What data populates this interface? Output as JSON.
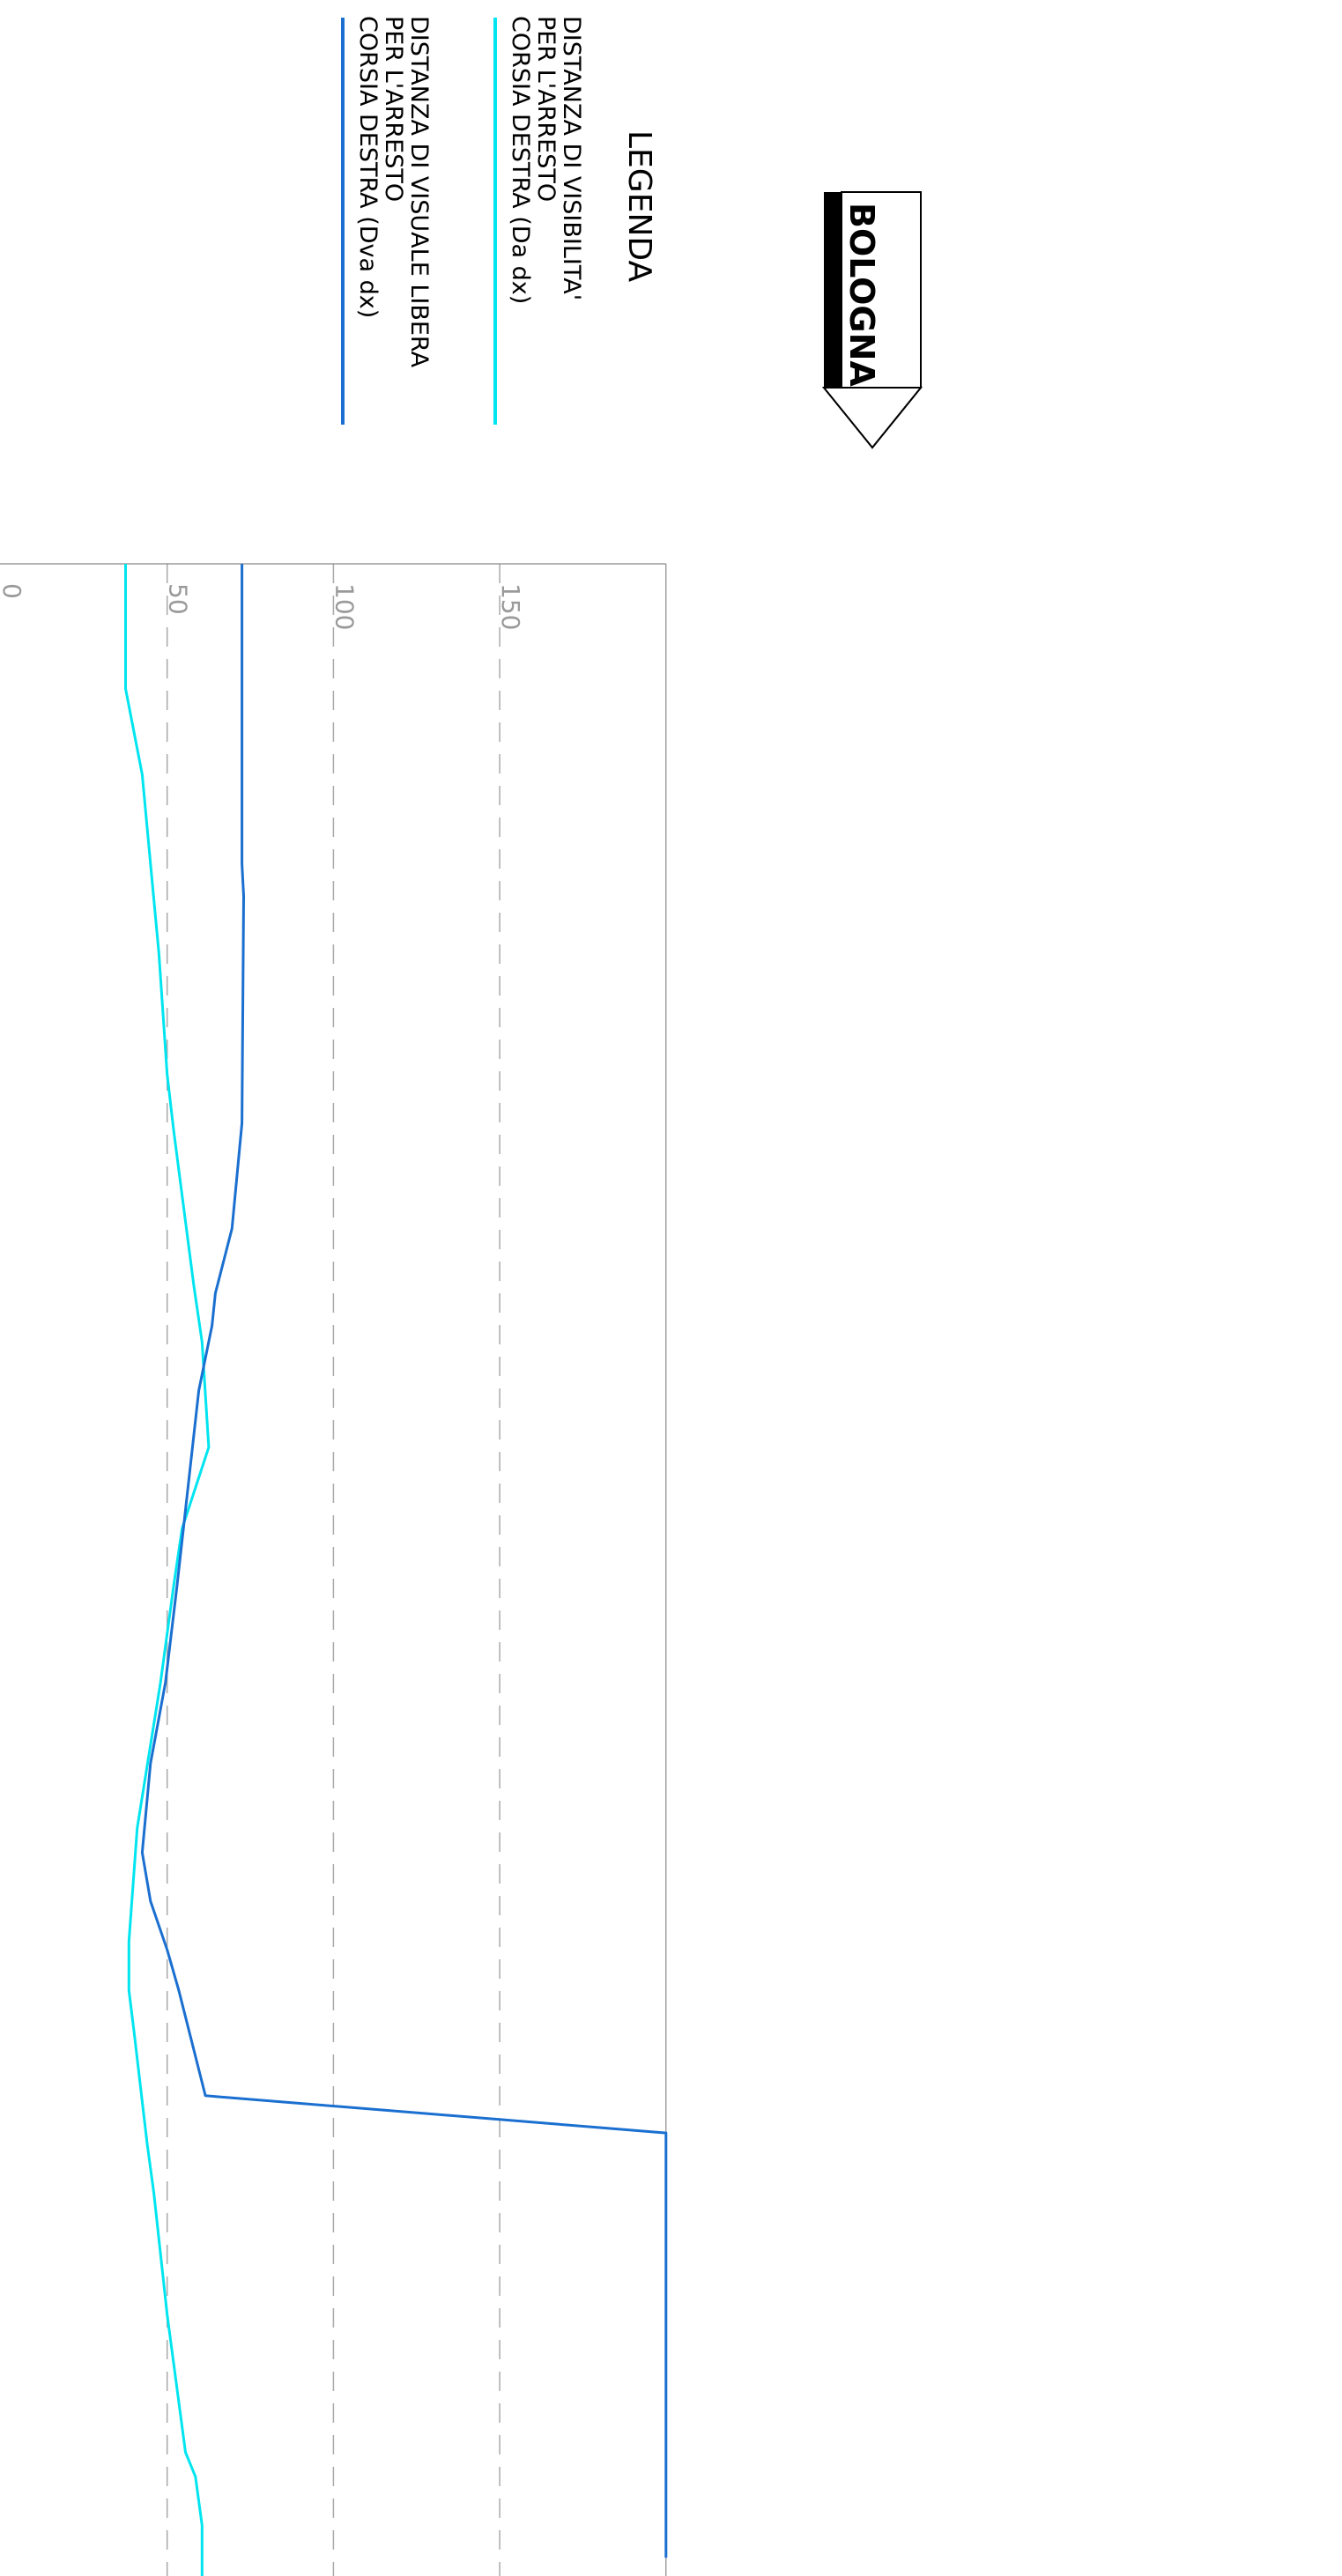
{
  "legend": {
    "title": "LEGENDA",
    "items": [
      {
        "lines": [
          "DISTANZA DI VISIBILITA'",
          "PER L'ARRESTO",
          "CORSIA DESTRA (Da dx)"
        ],
        "color": "#00e5f0"
      },
      {
        "lines": [
          "DISTANZA DI VISUALE LIBERA",
          "PER L'ARRESTO",
          "CORSIA DESTRA (Dva dx)"
        ],
        "color": "#1a6fd0"
      }
    ]
  },
  "direction": {
    "label": "BOLOGNA",
    "icon": "arrow-down-icon"
  },
  "chart_data": {
    "type": "line",
    "orientation": "rotated-90",
    "value_axis": {
      "ticks": [
        0,
        50,
        100,
        150
      ],
      "range": [
        0,
        200
      ],
      "gridlines": "dashed"
    },
    "series": [
      {
        "name": "Da dx",
        "color": "#00e5f0",
        "points": [
          [
            0,
            37.5
          ],
          [
            77,
            37.5
          ],
          [
            130,
            42.5
          ],
          [
            185,
            45
          ],
          [
            240,
            47.5
          ],
          [
            315,
            50
          ],
          [
            350,
            52
          ],
          [
            445,
            58
          ],
          [
            480,
            60.5
          ],
          [
            545,
            62.5
          ],
          [
            595,
            54.5
          ],
          [
            630,
            52
          ],
          [
            690,
            48
          ],
          [
            780,
            41
          ],
          [
            850,
            38.5
          ],
          [
            880,
            38.5
          ],
          [
            905,
            40
          ],
          [
            975,
            44
          ],
          [
            1005,
            46
          ],
          [
            1080,
            50
          ],
          [
            1165,
            55.5
          ],
          [
            1180,
            58.5
          ],
          [
            1210,
            60.5
          ],
          [
            1250,
            60.5
          ]
        ]
      },
      {
        "name": "Dva dx",
        "color": "#1a6fd0",
        "points": [
          [
            0,
            72.5
          ],
          [
            185,
            72.5
          ],
          [
            205,
            73
          ],
          [
            345,
            72.5
          ],
          [
            410,
            69.5
          ],
          [
            450,
            64.5
          ],
          [
            470,
            63.5
          ],
          [
            510,
            59.5
          ],
          [
            630,
            53
          ],
          [
            690,
            49.5
          ],
          [
            740,
            45
          ],
          [
            795,
            42.5
          ],
          [
            825,
            45
          ],
          [
            855,
            50
          ],
          [
            880,
            53.5
          ],
          [
            945,
            61.5
          ],
          [
            968,
            200
          ],
          [
            1230,
            200
          ]
        ]
      }
    ]
  }
}
